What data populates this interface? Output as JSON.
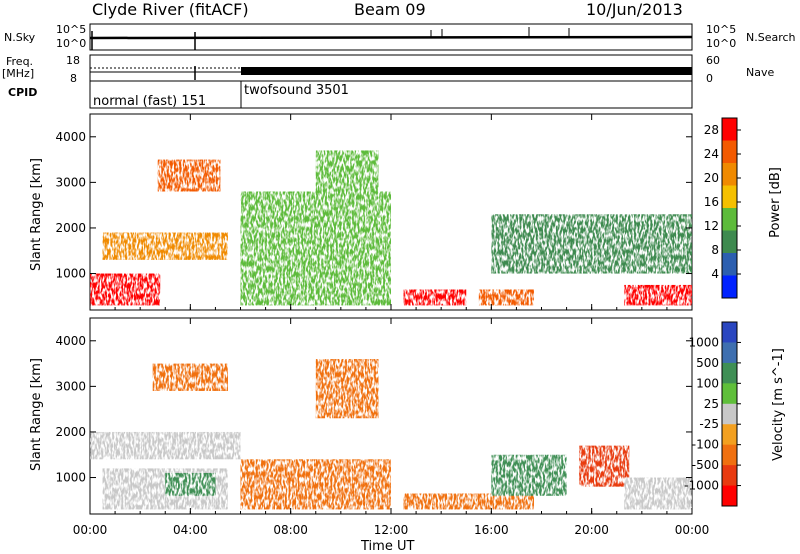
{
  "header": {
    "station": "Clyde River (fitACF)",
    "beam": "Beam 09",
    "date": "10/Jun/2013"
  },
  "top_panels": {
    "nsky_label": "N.Sky",
    "nsky_ticks": [
      "10^5",
      "10^0"
    ],
    "nsearch_label": "N.Search",
    "freq_label_1": "Freq.",
    "freq_label_2": "[MHz]",
    "freq_ticks": [
      "18",
      "8"
    ],
    "nave_label": "Nave",
    "nave_ticks": [
      "60",
      "0"
    ],
    "cpid_label": "CPID",
    "cpid_segments": [
      {
        "name": "normal (fast) 151",
        "start_hour": 0,
        "end_hour": 6
      },
      {
        "name": "twofsound 3501",
        "start_hour": 6,
        "end_hour": 24
      }
    ]
  },
  "chart_data": [
    {
      "type": "heatmap",
      "parameter": "power",
      "ylabel": "Slant Range [km]",
      "xlabel": "Time UT",
      "x_ticks": [
        "00:00",
        "04:00",
        "08:00",
        "12:00",
        "16:00",
        "20:00",
        "00:00"
      ],
      "xlim_hours": [
        0,
        24
      ],
      "y_ticks": [
        1000,
        2000,
        3000,
        4000
      ],
      "ylim": [
        200,
        4500
      ],
      "colorbar": {
        "label": "Power [dB]",
        "ticks": [
          "4",
          "8",
          "12",
          "16",
          "20",
          "24",
          "28"
        ],
        "range": [
          0,
          30
        ],
        "colors": [
          "#0022ff",
          "#2c5fb0",
          "#3e8a4f",
          "#5dbb3a",
          "#f5c000",
          "#f08a00",
          "#f35a00",
          "#ff0000"
        ]
      },
      "regions": [
        {
          "t0": 0.0,
          "t1": 2.8,
          "r0": 300,
          "r1": 1000,
          "v": 27
        },
        {
          "t0": 0.5,
          "t1": 5.5,
          "r0": 1300,
          "r1": 1900,
          "v": 22
        },
        {
          "t0": 2.7,
          "t1": 5.2,
          "r0": 2800,
          "r1": 3500,
          "v": 24
        },
        {
          "t0": 6.0,
          "t1": 12.0,
          "r0": 300,
          "r1": 2800,
          "v": 14
        },
        {
          "t0": 9.0,
          "t1": 11.5,
          "r0": 2300,
          "r1": 3700,
          "v": 14
        },
        {
          "t0": 12.5,
          "t1": 15.0,
          "r0": 300,
          "r1": 650,
          "v": 27
        },
        {
          "t0": 15.5,
          "t1": 17.7,
          "r0": 300,
          "r1": 650,
          "v": 24
        },
        {
          "t0": 16.0,
          "t1": 24.0,
          "r0": 1000,
          "r1": 2300,
          "v": 10
        },
        {
          "t0": 21.3,
          "t1": 24.0,
          "r0": 300,
          "r1": 750,
          "v": 28
        }
      ]
    },
    {
      "type": "heatmap",
      "parameter": "velocity",
      "ylabel": "Slant Range [km]",
      "xlabel": "Time UT",
      "x_ticks": [
        "00:00",
        "04:00",
        "08:00",
        "12:00",
        "16:00",
        "20:00",
        "00:00"
      ],
      "xlim_hours": [
        0,
        24
      ],
      "y_ticks": [
        1000,
        2000,
        3000,
        4000
      ],
      "ylim": [
        200,
        4500
      ],
      "colorbar": {
        "label": "Velocity [m s^-1]",
        "ticks": [
          "1000",
          "500",
          "100",
          "25",
          "-25",
          "-100",
          "-500",
          "-1000"
        ],
        "colors": [
          "#2a46c0",
          "#3e6fb0",
          "#3f8f55",
          "#5fbf3a",
          "#c8c8c8",
          "#f3a020",
          "#f07010",
          "#e83a10",
          "#ff0000"
        ]
      },
      "regions": [
        {
          "t0": 0.0,
          "t1": 6.0,
          "r0": 1400,
          "r1": 2000,
          "v": 0
        },
        {
          "t0": 0.5,
          "t1": 5.5,
          "r0": 300,
          "r1": 1200,
          "v": 0
        },
        {
          "t0": 3.0,
          "t1": 5.0,
          "r0": 600,
          "r1": 1100,
          "v": 200
        },
        {
          "t0": 2.5,
          "t1": 5.5,
          "r0": 2900,
          "r1": 3500,
          "v": -200
        },
        {
          "t0": 6.0,
          "t1": 12.0,
          "r0": 300,
          "r1": 1400,
          "v": -300
        },
        {
          "t0": 9.0,
          "t1": 11.5,
          "r0": 2300,
          "r1": 3600,
          "v": -200
        },
        {
          "t0": 12.5,
          "t1": 17.7,
          "r0": 300,
          "r1": 650,
          "v": -150
        },
        {
          "t0": 16.0,
          "t1": 19.0,
          "r0": 600,
          "r1": 1500,
          "v": 150
        },
        {
          "t0": 19.5,
          "t1": 21.5,
          "r0": 800,
          "r1": 1700,
          "v": -700
        },
        {
          "t0": 21.3,
          "t1": 24.0,
          "r0": 300,
          "r1": 1000,
          "v": 0
        }
      ]
    }
  ]
}
